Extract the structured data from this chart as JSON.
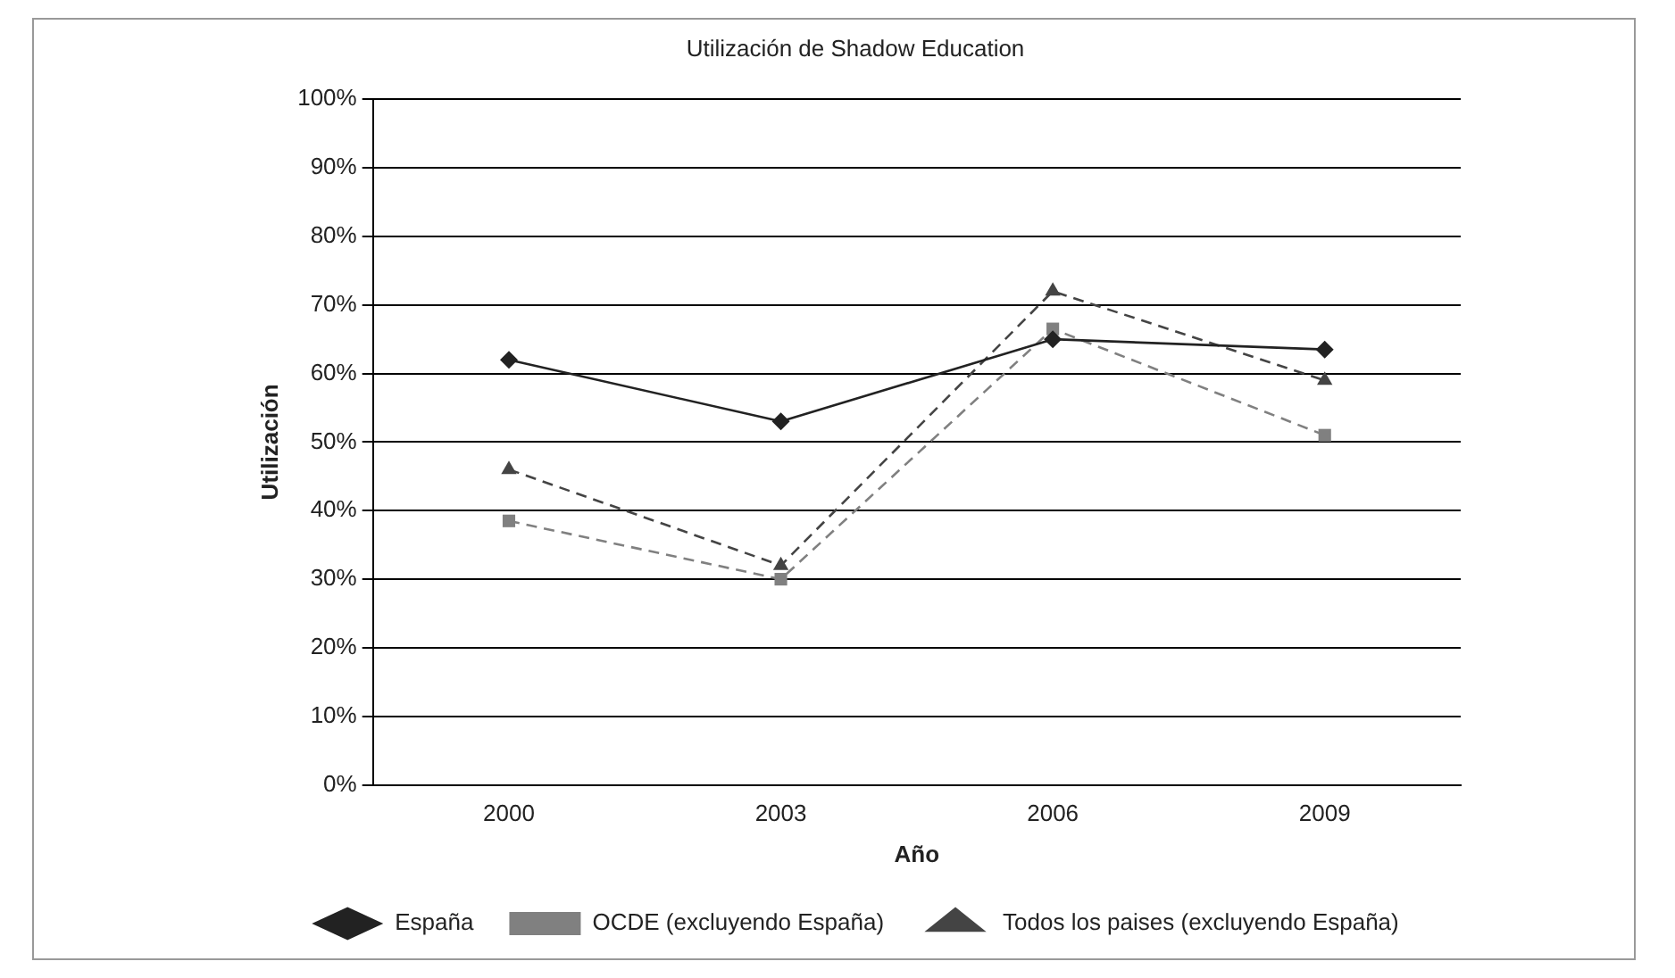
{
  "chart_data": {
    "type": "line",
    "title": "Utilización de Shadow Education",
    "xlabel": "Año",
    "ylabel": "Utilización",
    "categories": [
      "2000",
      "2003",
      "2006",
      "2009"
    ],
    "series": [
      {
        "name": "España",
        "color": "#222222",
        "values": [
          62,
          53,
          65,
          63.5
        ],
        "marker": "diamond",
        "line_style": "solid"
      },
      {
        "name": "OCDE (excluyendo España)",
        "color": "#808080",
        "values": [
          38.5,
          30,
          66.5,
          51
        ],
        "marker": "square",
        "line_style": "dashed"
      },
      {
        "name": "Todos los paises (excluyendo España)",
        "color": "#444444",
        "values": [
          46,
          32,
          72,
          59
        ],
        "marker": "triangle",
        "line_style": "dashed"
      }
    ],
    "ylim": [
      0,
      100
    ],
    "yticks": [
      {
        "value": 0,
        "label": "0%"
      },
      {
        "value": 10,
        "label": "10%"
      },
      {
        "value": 20,
        "label": "20%"
      },
      {
        "value": 30,
        "label": "30%"
      },
      {
        "value": 40,
        "label": "40%"
      },
      {
        "value": 50,
        "label": "50%"
      },
      {
        "value": 60,
        "label": "60%"
      },
      {
        "value": 70,
        "label": "70%"
      },
      {
        "value": 80,
        "label": "80%"
      },
      {
        "value": 90,
        "label": "90%"
      },
      {
        "value": 100,
        "label": "100%"
      }
    ],
    "grid": "y",
    "legend": "bottom"
  }
}
